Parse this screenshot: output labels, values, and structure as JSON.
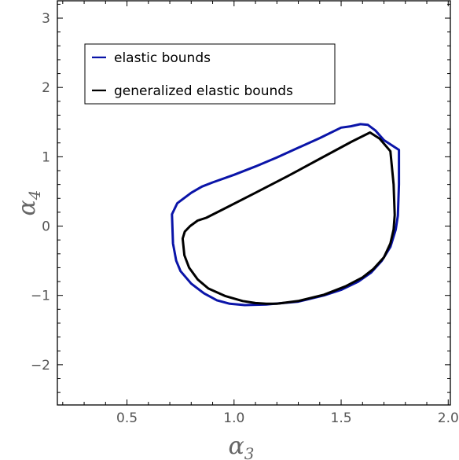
{
  "chart_data": {
    "type": "line",
    "title": "",
    "xlabel": {
      "base": "α",
      "sub": "3"
    },
    "ylabel": {
      "base": "α",
      "sub": "4"
    },
    "xlim": [
      0.175,
      2.01
    ],
    "ylim": [
      -2.58,
      3.25
    ],
    "xticks": [
      0.5,
      1.0,
      1.5,
      2.0
    ],
    "xtick_labels": [
      "0.5",
      "1.0",
      "1.5",
      "2.0"
    ],
    "yticks": [
      -2,
      -1,
      0,
      1,
      2,
      3
    ],
    "ytick_labels": [
      "−2",
      "−1",
      "0",
      "1",
      "2",
      "3"
    ],
    "grid": false,
    "legend_position": "top-left",
    "series": [
      {
        "name": "elastic bounds",
        "color": "#0a14a8",
        "closed": true,
        "x": [
          1.545,
          1.59,
          1.625,
          1.66,
          1.7,
          1.77,
          1.77,
          1.765,
          1.755,
          1.73,
          1.69,
          1.64,
          1.58,
          1.5,
          1.42,
          1.3,
          1.15,
          1.05,
          0.98,
          0.92,
          0.86,
          0.8,
          0.75,
          0.73,
          0.715,
          0.71,
          0.735,
          0.8,
          0.85,
          0.9,
          1.0,
          1.1,
          1.2,
          1.3,
          1.4,
          1.5,
          1.545
        ],
        "y": [
          1.44,
          1.47,
          1.46,
          1.38,
          1.24,
          1.1,
          0.6,
          0.15,
          -0.05,
          -0.3,
          -0.5,
          -0.67,
          -0.8,
          -0.92,
          -1.0,
          -1.09,
          -1.13,
          -1.14,
          -1.12,
          -1.07,
          -0.97,
          -0.83,
          -0.65,
          -0.5,
          -0.25,
          0.17,
          0.33,
          0.48,
          0.57,
          0.63,
          0.74,
          0.86,
          0.99,
          1.13,
          1.27,
          1.42,
          1.44
        ]
      },
      {
        "name": "generalized elastic bounds",
        "color": "#000000",
        "closed": true,
        "x": [
          1.635,
          1.68,
          1.73,
          1.745,
          1.75,
          1.745,
          1.73,
          1.7,
          1.65,
          1.6,
          1.52,
          1.42,
          1.3,
          1.2,
          1.15,
          1.1,
          1.04,
          0.96,
          0.88,
          0.83,
          0.79,
          0.768,
          0.76,
          0.77,
          0.795,
          0.83,
          0.87,
          0.96,
          1.1,
          1.25,
          1.4,
          1.55,
          1.635
        ],
        "y": [
          1.35,
          1.26,
          1.08,
          0.6,
          0.16,
          -0.05,
          -0.25,
          -0.45,
          -0.62,
          -0.74,
          -0.87,
          -0.99,
          -1.08,
          -1.12,
          -1.12,
          -1.11,
          -1.08,
          -1.01,
          -0.9,
          -0.77,
          -0.6,
          -0.42,
          -0.18,
          -0.08,
          0.0,
          0.08,
          0.12,
          0.26,
          0.48,
          0.72,
          0.97,
          1.22,
          1.35
        ]
      }
    ]
  }
}
